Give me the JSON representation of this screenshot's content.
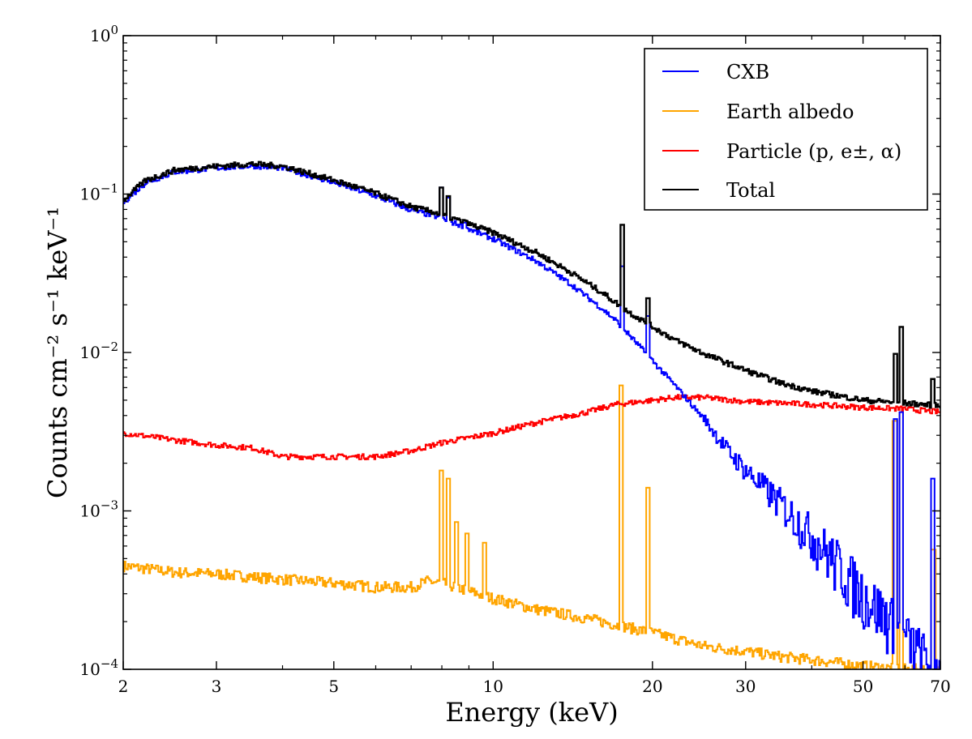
{
  "chart_data": {
    "type": "line",
    "xlabel": "Energy (keV)",
    "ylabel": "Counts cm⁻² s⁻¹ keV⁻¹",
    "x_scale": "log",
    "y_scale": "log",
    "xlim": [
      2,
      70
    ],
    "ylim": [
      0.0001,
      1
    ],
    "grid": false,
    "legend_position": "top-right",
    "x_ticks": [
      2,
      3,
      5,
      10,
      20,
      30,
      50,
      70
    ],
    "x_tick_labels": [
      "2",
      "3",
      "5",
      "10",
      "20",
      "30",
      "50",
      "70"
    ],
    "y_ticks": [
      0.0001,
      0.001,
      0.01,
      0.1,
      1
    ],
    "y_tick_labels": [
      {
        "base": "10",
        "exp": "−4"
      },
      {
        "base": "10",
        "exp": "−3"
      },
      {
        "base": "10",
        "exp": "−2"
      },
      {
        "base": "10",
        "exp": "−1"
      },
      {
        "base": "10",
        "exp": "0"
      }
    ],
    "series": [
      {
        "name": "CXB",
        "color": "#0000ff",
        "points": [
          [
            2,
            0.089
          ],
          [
            2.2,
            0.118
          ],
          [
            2.5,
            0.138
          ],
          [
            3,
            0.146
          ],
          [
            3.5,
            0.151
          ],
          [
            4,
            0.146
          ],
          [
            5,
            0.118
          ],
          [
            6,
            0.097
          ],
          [
            7,
            0.079
          ],
          [
            7.7,
            0.073
          ],
          [
            8.5,
            0.065
          ],
          [
            10,
            0.052
          ],
          [
            12,
            0.038
          ],
          [
            14,
            0.027
          ],
          [
            16,
            0.019
          ],
          [
            17,
            0.016
          ],
          [
            18,
            0.013
          ],
          [
            20,
            0.0088
          ],
          [
            22,
            0.0062
          ],
          [
            25,
            0.0038
          ],
          [
            28,
            0.0023
          ],
          [
            30,
            0.0018
          ],
          [
            35,
            0.0011
          ],
          [
            40,
            0.0007
          ],
          [
            45,
            0.00045
          ],
          [
            50,
            0.0003
          ],
          [
            55,
            0.00022
          ],
          [
            60,
            0.00016
          ],
          [
            65,
            0.00012
          ],
          [
            70,
            0.0001
          ]
        ],
        "peaks": [
          [
            7.95,
            0.11
          ],
          [
            8.2,
            0.095
          ],
          [
            8.8,
            0.066
          ],
          [
            17.5,
            0.035
          ],
          [
            19.6,
            0.017
          ],
          [
            57.5,
            0.0038
          ],
          [
            58.8,
            0.0042
          ],
          [
            67.5,
            0.0016
          ]
        ]
      },
      {
        "name": "Earth albedo",
        "color": "#ffa500",
        "points": [
          [
            2,
            0.00045
          ],
          [
            2.5,
            0.00041
          ],
          [
            3,
            0.0004
          ],
          [
            4,
            0.00037
          ],
          [
            5,
            0.00035
          ],
          [
            6,
            0.00033
          ],
          [
            7,
            0.00033
          ],
          [
            7.5,
            0.00036
          ],
          [
            8,
            0.00035
          ],
          [
            10,
            0.00028
          ],
          [
            12,
            0.00024
          ],
          [
            15,
            0.00021
          ],
          [
            20,
            0.00017
          ],
          [
            25,
            0.00014
          ],
          [
            30,
            0.00013
          ],
          [
            35,
            0.00012
          ],
          [
            40,
            0.000115
          ],
          [
            50,
            0.000105
          ],
          [
            60,
            0.0001
          ],
          [
            70,
            0.0001
          ]
        ],
        "peaks": [
          [
            7.95,
            0.0018
          ],
          [
            8.2,
            0.0016
          ],
          [
            8.5,
            0.00085
          ],
          [
            8.9,
            0.00072
          ],
          [
            9.6,
            0.00063
          ],
          [
            17.4,
            0.0062
          ],
          [
            19.6,
            0.0014
          ],
          [
            57.3,
            0.0037
          ],
          [
            58.8,
            0.0042
          ],
          [
            67.7,
            0.00057
          ]
        ]
      },
      {
        "name": "Particle (p, e±, α)",
        "color": "#ff0000",
        "points": [
          [
            2,
            0.0031
          ],
          [
            2.5,
            0.0028
          ],
          [
            3,
            0.0026
          ],
          [
            3.5,
            0.0025
          ],
          [
            4,
            0.0022
          ],
          [
            4.5,
            0.0022
          ],
          [
            5,
            0.0022
          ],
          [
            6,
            0.0022
          ],
          [
            7,
            0.0024
          ],
          [
            8,
            0.0027
          ],
          [
            10,
            0.0031
          ],
          [
            12,
            0.0036
          ],
          [
            15,
            0.0042
          ],
          [
            17,
            0.0047
          ],
          [
            20,
            0.005
          ],
          [
            22,
            0.0052
          ],
          [
            25,
            0.0052
          ],
          [
            30,
            0.0049
          ],
          [
            40,
            0.0047
          ],
          [
            50,
            0.0045
          ],
          [
            60,
            0.0044
          ],
          [
            70,
            0.0042
          ]
        ],
        "peaks": []
      },
      {
        "name": "Total",
        "color": "#000000",
        "points": [
          [
            2,
            0.092
          ],
          [
            2.2,
            0.122
          ],
          [
            2.5,
            0.142
          ],
          [
            3,
            0.15
          ],
          [
            3.5,
            0.155
          ],
          [
            4,
            0.15
          ],
          [
            5,
            0.122
          ],
          [
            6,
            0.101
          ],
          [
            7,
            0.083
          ],
          [
            7.7,
            0.077
          ],
          [
            8.5,
            0.069
          ],
          [
            10,
            0.057
          ],
          [
            12,
            0.043
          ],
          [
            14,
            0.032
          ],
          [
            16,
            0.024
          ],
          [
            18,
            0.018
          ],
          [
            20,
            0.0145
          ],
          [
            22,
            0.012
          ],
          [
            25,
            0.0098
          ],
          [
            30,
            0.0077
          ],
          [
            35,
            0.0064
          ],
          [
            40,
            0.0057
          ],
          [
            50,
            0.005
          ],
          [
            60,
            0.0048
          ],
          [
            70,
            0.0046
          ]
        ],
        "peaks": [
          [
            7.95,
            0.11
          ],
          [
            8.2,
            0.097
          ],
          [
            8.8,
            0.068
          ],
          [
            17.5,
            0.064
          ],
          [
            19.6,
            0.022
          ],
          [
            57.4,
            0.0098
          ],
          [
            58.8,
            0.0145
          ],
          [
            67.5,
            0.0068
          ]
        ]
      }
    ]
  }
}
